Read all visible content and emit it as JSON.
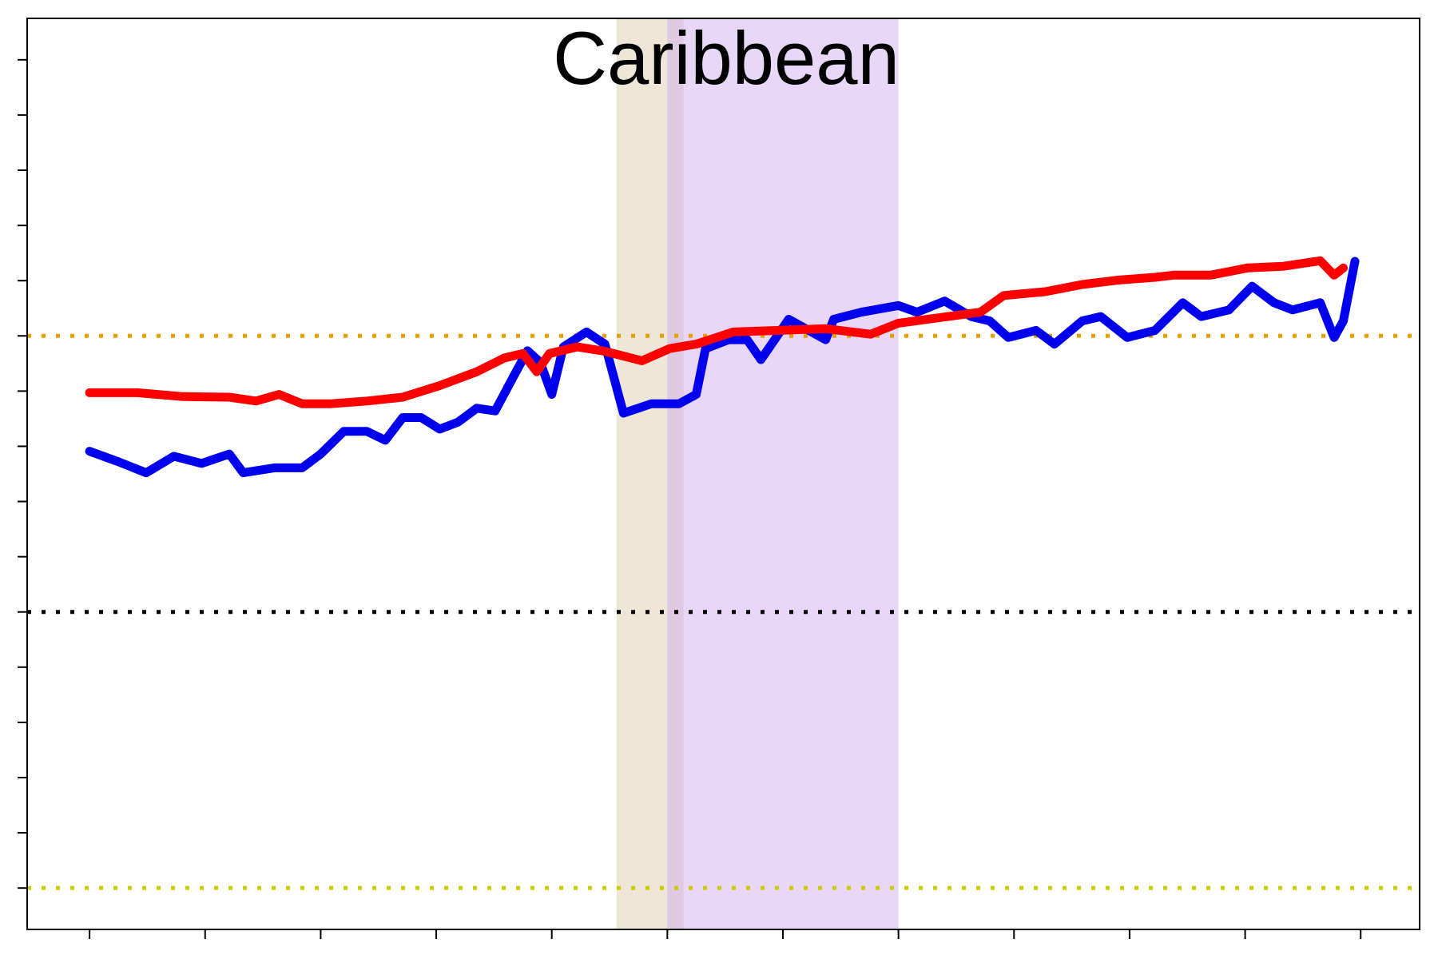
{
  "chart_data": {
    "type": "line",
    "title": "Caribbean",
    "xlim": [
      -0.54,
      11.51
    ],
    "xticks": [
      0,
      1,
      2,
      3,
      4,
      5,
      6,
      7,
      8,
      9,
      10,
      11
    ],
    "ylim": [
      -0.75,
      15.75
    ],
    "yticks": [
      0,
      1,
      2,
      3,
      4,
      5,
      6,
      7,
      8,
      9,
      10,
      11,
      12,
      13,
      14,
      15
    ],
    "bands": [
      {
        "xlim": [
          4.56,
          5.14
        ],
        "color": "#d9c7a3"
      },
      {
        "xlim": [
          5.0,
          7.0
        ],
        "color": "#cfa6f3"
      }
    ],
    "hlines": [
      {
        "y": 10,
        "color": "#e69f00"
      },
      {
        "y": 5,
        "color": "#000000"
      },
      {
        "y": 0,
        "color": "#cccc00"
      }
    ],
    "series": [
      {
        "color": "#0000ee",
        "x": [
          0,
          0.25,
          0.49,
          0.73,
          0.97,
          1.21,
          1.33,
          1.6,
          1.84,
          2.0,
          2.2,
          2.4,
          2.56,
          2.71,
          2.87,
          3.03,
          3.19,
          3.35,
          3.51,
          3.67,
          3.79,
          3.9,
          4.0,
          4.1,
          4.3,
          4.46,
          4.62,
          4.86,
          5.1,
          5.25,
          5.33,
          5.53,
          5.69,
          5.81,
          6.05,
          6.37,
          6.44,
          6.68,
          7.0,
          7.16,
          7.4,
          7.63,
          7.79,
          7.95,
          8.19,
          8.35,
          8.59,
          8.75,
          8.98,
          9.22,
          9.46,
          9.62,
          9.86,
          10.06,
          10.25,
          10.41,
          10.65,
          10.77,
          10.85,
          10.95
        ],
        "values": [
          7.91,
          7.72,
          7.52,
          7.82,
          7.69,
          7.86,
          7.52,
          7.61,
          7.61,
          7.86,
          8.27,
          8.27,
          8.11,
          8.52,
          8.52,
          8.31,
          8.44,
          8.69,
          8.64,
          9.27,
          9.73,
          9.52,
          8.94,
          9.8,
          10.07,
          9.85,
          8.6,
          8.77,
          8.77,
          8.94,
          9.77,
          9.93,
          9.93,
          9.57,
          10.3,
          9.93,
          10.3,
          10.43,
          10.55,
          10.43,
          10.63,
          10.35,
          10.27,
          9.97,
          10.1,
          9.85,
          10.27,
          10.35,
          9.97,
          10.1,
          10.6,
          10.35,
          10.47,
          10.9,
          10.6,
          10.47,
          10.6,
          9.97,
          10.27,
          11.35
        ]
      },
      {
        "color": "#ff0000",
        "x": [
          0,
          0.41,
          0.81,
          1.21,
          1.44,
          1.64,
          1.84,
          2.08,
          2.4,
          2.71,
          3.03,
          3.35,
          3.59,
          3.75,
          3.87,
          3.98,
          4.22,
          4.46,
          4.78,
          5.02,
          5.25,
          5.57,
          5.97,
          6.37,
          6.76,
          7.0,
          7.32,
          7.71,
          7.91,
          8.27,
          8.59,
          8.9,
          9.22,
          9.38,
          9.7,
          10.02,
          10.33,
          10.65,
          10.77,
          10.85
        ],
        "values": [
          8.97,
          8.97,
          8.9,
          8.89,
          8.82,
          8.94,
          8.77,
          8.77,
          8.82,
          8.89,
          9.1,
          9.35,
          9.6,
          9.68,
          9.35,
          9.68,
          9.8,
          9.72,
          9.55,
          9.77,
          9.85,
          10.07,
          10.1,
          10.13,
          10.03,
          10.23,
          10.32,
          10.43,
          10.73,
          10.8,
          10.93,
          11.01,
          11.06,
          11.1,
          11.1,
          11.23,
          11.26,
          11.36,
          11.1,
          11.23
        ]
      }
    ]
  }
}
